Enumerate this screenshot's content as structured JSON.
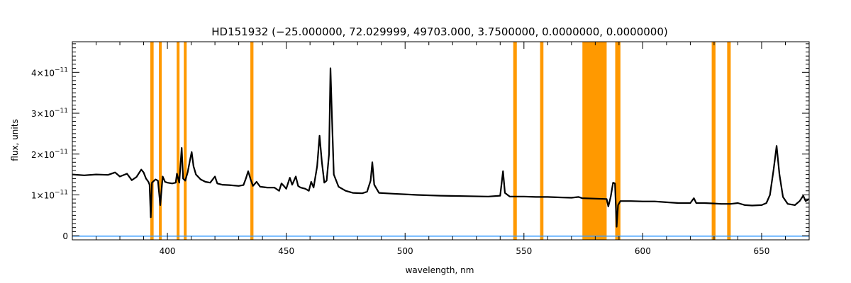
{
  "chart_data": {
    "type": "line",
    "title": "HD151932    (−25.000000, 72.029999, 49703.000, 3.7500000, 0.0000000, 0.0000000)",
    "xlabel": "wavelength, nm",
    "ylabel": "flux, units",
    "xlim": [
      360,
      670
    ],
    "ylim": [
      -1e-12,
      4.75e-11
    ],
    "x_ticks": [
      {
        "value": 400,
        "label": "400"
      },
      {
        "value": 450,
        "label": "450"
      },
      {
        "value": 500,
        "label": "500"
      },
      {
        "value": 550,
        "label": "550"
      },
      {
        "value": 600,
        "label": "600"
      },
      {
        "value": 650,
        "label": "650"
      }
    ],
    "y_ticks": [
      {
        "value": 0,
        "mantissa": "0",
        "exponent": ""
      },
      {
        "value": 1e-11,
        "mantissa": "1×10",
        "exponent": "−11"
      },
      {
        "value": 2e-11,
        "mantissa": "2×10",
        "exponent": "−11"
      },
      {
        "value": 3e-11,
        "mantissa": "3×10",
        "exponent": "−11"
      },
      {
        "value": 4e-11,
        "mantissa": "4×10",
        "exponent": "−11"
      }
    ],
    "grid": false,
    "colors": {
      "spectrum": "#000000",
      "bands": "#ff9900",
      "baseline": "#3399ff",
      "axes": "#000000"
    },
    "highlight_bands": [
      [
        392.8,
        394.2
      ],
      [
        396.4,
        397.6
      ],
      [
        403.9,
        405.1
      ],
      [
        406.9,
        408.1
      ],
      [
        434.9,
        436.2
      ],
      [
        545.5,
        547.0
      ],
      [
        556.8,
        558.2
      ],
      [
        574.6,
        584.8
      ],
      [
        588.4,
        590.6
      ],
      [
        629.0,
        630.6
      ],
      [
        635.5,
        637.0
      ]
    ],
    "baseline": {
      "y": 0,
      "from": 360,
      "to": 670
    },
    "series": [
      {
        "points": [
          [
            360,
            1.5e-11
          ],
          [
            365,
            1.48e-11
          ],
          [
            370,
            1.5e-11
          ],
          [
            375,
            1.49e-11
          ],
          [
            378,
            1.55e-11
          ],
          [
            380,
            1.45e-11
          ],
          [
            383,
            1.52e-11
          ],
          [
            385,
            1.36e-11
          ],
          [
            387,
            1.44e-11
          ],
          [
            389,
            1.62e-11
          ],
          [
            390,
            1.55e-11
          ],
          [
            391,
            1.4e-11
          ],
          [
            392,
            1.32e-11
          ],
          [
            392.5,
            1.25e-11
          ],
          [
            393,
            4.5e-12
          ],
          [
            393.5,
            1.3e-11
          ],
          [
            395,
            1.38e-11
          ],
          [
            396,
            1.35e-11
          ],
          [
            397,
            7.5e-12
          ],
          [
            398,
            1.45e-11
          ],
          [
            399,
            1.32e-11
          ],
          [
            400,
            1.3e-11
          ],
          [
            402,
            1.28e-11
          ],
          [
            403.5,
            1.3e-11
          ],
          [
            404,
            1.52e-11
          ],
          [
            405,
            1.3e-11
          ],
          [
            406,
            2.15e-11
          ],
          [
            406.6,
            1.4e-11
          ],
          [
            407.5,
            1.35e-11
          ],
          [
            408.5,
            1.55e-11
          ],
          [
            409.5,
            1.85e-11
          ],
          [
            410.2,
            2.05e-11
          ],
          [
            411,
            1.7e-11
          ],
          [
            412,
            1.5e-11
          ],
          [
            414,
            1.38e-11
          ],
          [
            416,
            1.32e-11
          ],
          [
            418,
            1.3e-11
          ],
          [
            420,
            1.45e-11
          ],
          [
            421,
            1.28e-11
          ],
          [
            423,
            1.25e-11
          ],
          [
            426,
            1.24e-11
          ],
          [
            430,
            1.22e-11
          ],
          [
            432,
            1.24e-11
          ],
          [
            433,
            1.4e-11
          ],
          [
            434,
            1.58e-11
          ],
          [
            435,
            1.38e-11
          ],
          [
            436,
            1.22e-11
          ],
          [
            437.5,
            1.32e-11
          ],
          [
            439,
            1.2e-11
          ],
          [
            442,
            1.18e-11
          ],
          [
            445,
            1.18e-11
          ],
          [
            447,
            1.1e-11
          ],
          [
            448,
            1.28e-11
          ],
          [
            449,
            1.22e-11
          ],
          [
            450,
            1.15e-11
          ],
          [
            451.5,
            1.42e-11
          ],
          [
            452.5,
            1.25e-11
          ],
          [
            454,
            1.45e-11
          ],
          [
            455,
            1.22e-11
          ],
          [
            456,
            1.18e-11
          ],
          [
            458,
            1.15e-11
          ],
          [
            459.5,
            1.1e-11
          ],
          [
            460.5,
            1.32e-11
          ],
          [
            461.5,
            1.18e-11
          ],
          [
            463,
            1.7e-11
          ],
          [
            464,
            2.45e-11
          ],
          [
            465,
            1.8e-11
          ],
          [
            466,
            1.3e-11
          ],
          [
            467,
            1.35e-11
          ],
          [
            468,
            2e-11
          ],
          [
            468.6,
            4.1e-11
          ],
          [
            469.3,
            2.8e-11
          ],
          [
            470,
            1.5e-11
          ],
          [
            472,
            1.2e-11
          ],
          [
            475,
            1.1e-11
          ],
          [
            478,
            1.05e-11
          ],
          [
            482,
            1.04e-11
          ],
          [
            484,
            1.08e-11
          ],
          [
            485.5,
            1.35e-11
          ],
          [
            486.2,
            1.8e-11
          ],
          [
            487,
            1.25e-11
          ],
          [
            489,
            1.05e-11
          ],
          [
            495,
            1.03e-11
          ],
          [
            505,
            1e-11
          ],
          [
            515,
            9.8e-12
          ],
          [
            525,
            9.7e-12
          ],
          [
            535,
            9.6e-12
          ],
          [
            540,
            9.8e-12
          ],
          [
            541.2,
            1.58e-11
          ],
          [
            542,
            1.05e-11
          ],
          [
            544,
            9.6e-12
          ],
          [
            550,
            9.6e-12
          ],
          [
            555,
            9.5e-12
          ],
          [
            560,
            9.5e-12
          ],
          [
            565,
            9.4e-12
          ],
          [
            570,
            9.3e-12
          ],
          [
            573,
            9.5e-12
          ],
          [
            574.5,
            9.2e-12
          ],
          [
            584.8,
            9e-12
          ],
          [
            585.5,
            7.2e-12
          ],
          [
            586.5,
            9.5e-12
          ],
          [
            587.5,
            1.3e-11
          ],
          [
            588.3,
            1.28e-11
          ],
          [
            589,
            2.2e-12
          ],
          [
            589.6,
            7.5e-12
          ],
          [
            590.6,
            8.5e-12
          ],
          [
            595,
            8.5e-12
          ],
          [
            600,
            8.4e-12
          ],
          [
            605,
            8.4e-12
          ],
          [
            610,
            8.2e-12
          ],
          [
            615,
            8e-12
          ],
          [
            620,
            8e-12
          ],
          [
            621.5,
            9.2e-12
          ],
          [
            622.5,
            8e-12
          ],
          [
            626,
            8e-12
          ],
          [
            630,
            7.9e-12
          ],
          [
            633,
            7.8e-12
          ],
          [
            637,
            7.8e-12
          ],
          [
            640,
            8e-12
          ],
          [
            643,
            7.5e-12
          ],
          [
            646,
            7.4e-12
          ],
          [
            650,
            7.5e-12
          ],
          [
            652,
            8e-12
          ],
          [
            653.5,
            1e-11
          ],
          [
            655,
            1.6e-11
          ],
          [
            656.3,
            2.2e-11
          ],
          [
            657.5,
            1.5e-11
          ],
          [
            659,
            9.5e-12
          ],
          [
            661,
            7.8e-12
          ],
          [
            664,
            7.5e-12
          ],
          [
            666,
            8.5e-12
          ],
          [
            667.5,
            9.8e-12
          ],
          [
            668.5,
            8.5e-12
          ],
          [
            670,
            9e-12
          ]
        ]
      }
    ]
  }
}
